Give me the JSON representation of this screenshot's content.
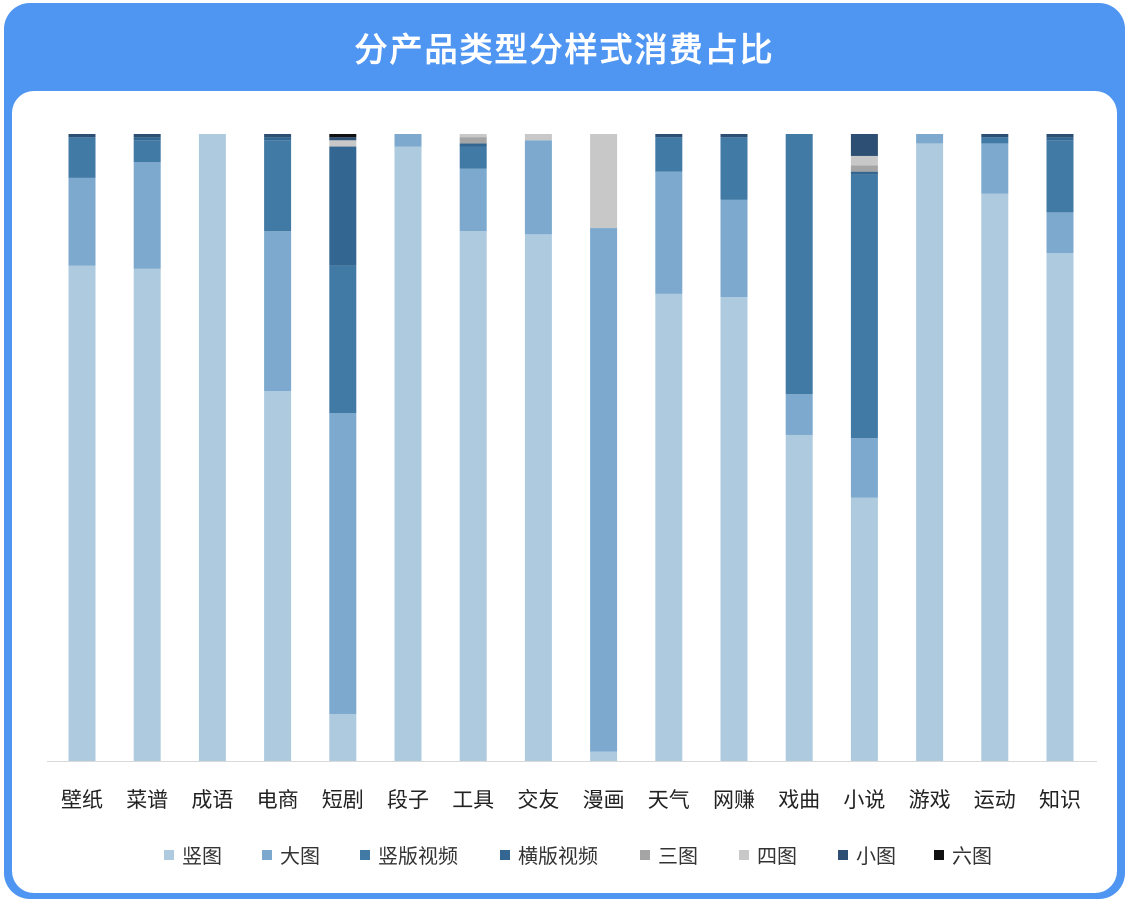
{
  "title": "分产品类型分样式消费占比",
  "chart_data": {
    "type": "bar",
    "stacked": true,
    "orientation": "vertical",
    "ylim": [
      0,
      100
    ],
    "unit": "%",
    "categories": [
      "壁纸",
      "菜谱",
      "成语",
      "电商",
      "短剧",
      "段子",
      "工具",
      "交友",
      "漫画",
      "天气",
      "网赚",
      "戏曲",
      "小说",
      "游戏",
      "运动",
      "知识"
    ],
    "series": [
      {
        "name": "竖图",
        "color": "#aecadf",
        "values": [
          79,
          78.5,
          100,
          59,
          7.5,
          98,
          84.5,
          84,
          1.5,
          74.5,
          74,
          52,
          42,
          98.5,
          90.5,
          81
        ]
      },
      {
        "name": "大图",
        "color": "#7ca9cd",
        "values": [
          14,
          17,
          0,
          25.5,
          48,
          2,
          10,
          15,
          83.5,
          19.5,
          15.5,
          6.5,
          9.5,
          1.5,
          8,
          6.5
        ]
      },
      {
        "name": "竖版视频",
        "color": "#417aa5",
        "values": [
          6.5,
          3.5,
          0,
          14.5,
          23.5,
          0,
          3.5,
          0,
          0,
          5.5,
          10,
          41.5,
          42,
          0,
          1,
          11.5
        ]
      },
      {
        "name": "横版视频",
        "color": "#336690",
        "values": [
          0,
          0.5,
          0,
          0.5,
          19,
          0,
          0.5,
          0,
          0,
          0,
          0,
          0,
          0.5,
          0,
          0,
          0.5
        ]
      },
      {
        "name": "三图",
        "color": "#a5a5a5",
        "values": [
          0,
          0,
          0,
          0,
          0,
          0,
          1,
          0,
          0,
          0,
          0,
          0,
          1,
          0,
          0,
          0
        ]
      },
      {
        "name": "四图",
        "color": "#c8c8c8",
        "values": [
          0,
          0,
          0,
          0,
          1,
          0,
          0.5,
          1,
          15,
          0,
          0,
          0,
          1.5,
          0,
          0,
          0
        ]
      },
      {
        "name": "小图",
        "color": "#2d4f74",
        "values": [
          0.5,
          0.5,
          0,
          0.5,
          0.5,
          0,
          0,
          0,
          0,
          0.5,
          0.5,
          0,
          3.5,
          0,
          0.5,
          0.5
        ]
      },
      {
        "name": "六图",
        "color": "#111111",
        "values": [
          0,
          0,
          0,
          0,
          0.5,
          0,
          0,
          0,
          0,
          0,
          0,
          0,
          0,
          0,
          0,
          0
        ]
      }
    ],
    "legend_position": "bottom",
    "grid": false
  }
}
